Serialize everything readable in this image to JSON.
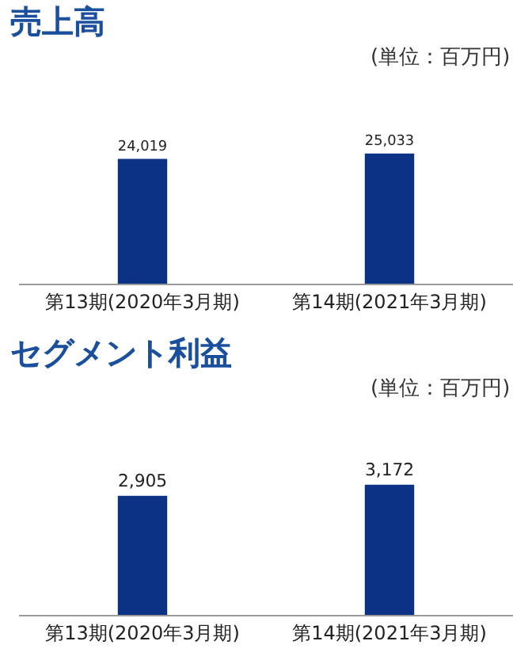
{
  "chart_data": [
    {
      "type": "bar",
      "title": "売上高",
      "subtitle": "(単位：百万円)",
      "categories": [
        "第13期(2020年3月期)",
        "第14期(2021年3月期)"
      ],
      "values": [
        24019,
        25033
      ],
      "value_labels": [
        "24,019",
        "25,033"
      ],
      "color": "#0c3285"
    },
    {
      "type": "bar",
      "title": "セグメント利益",
      "subtitle": "(単位：百万円)",
      "categories": [
        "第13期(2020年3月期)",
        "第14期(2021年3月期)"
      ],
      "values": [
        2905,
        3172
      ],
      "value_labels": [
        "2,905",
        "3,172"
      ],
      "color": "#0c3285"
    }
  ]
}
